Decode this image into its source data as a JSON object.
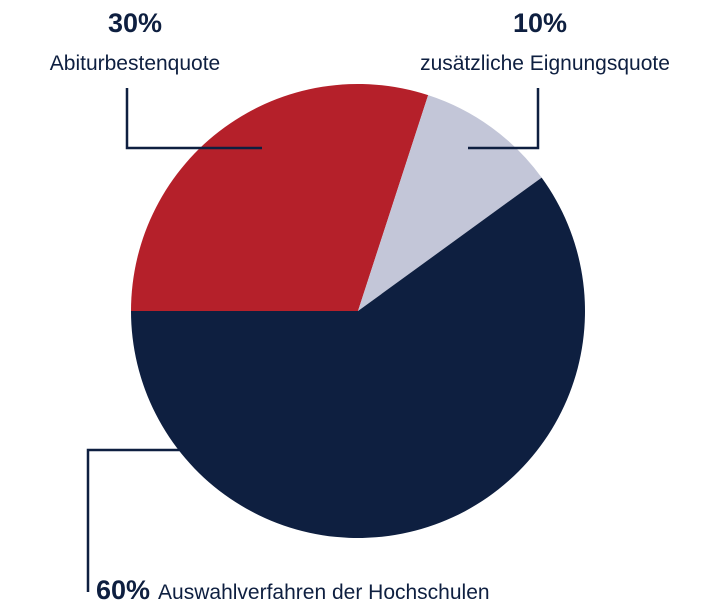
{
  "chart_data": {
    "type": "pie",
    "categories": [
      "Abiturbestenquote",
      "zusätzliche Eignungsquote",
      "Auswahlverfahren der Hochschulen"
    ],
    "values": [
      30,
      10,
      60
    ],
    "value_labels": [
      "30%",
      "10%",
      "60%"
    ],
    "colors": [
      "#b5202a",
      "#c3c6d8",
      "#0e1f40"
    ]
  }
}
